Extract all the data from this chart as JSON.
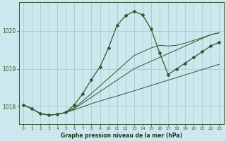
{
  "title": "Graphe pression niveau de la mer (hPa)",
  "bg_color": "#cce8ee",
  "grid_color": "#aacccc",
  "line_color": "#2d5a2d",
  "xlabel_color": "#1a3a1a",
  "ylim": [
    1017.55,
    1020.75
  ],
  "xlim": [
    -0.5,
    23.5
  ],
  "yticks": [
    1018,
    1019,
    1020
  ],
  "xticks": [
    0,
    1,
    2,
    3,
    4,
    5,
    6,
    7,
    8,
    9,
    10,
    11,
    12,
    13,
    14,
    15,
    16,
    17,
    18,
    19,
    20,
    21,
    22,
    23
  ],
  "line1_x": [
    0,
    1,
    2,
    3,
    4,
    5,
    6,
    7,
    8,
    9,
    10,
    11,
    12,
    13,
    14,
    15,
    16,
    17,
    18,
    19,
    20,
    21,
    22,
    23
  ],
  "line1_y": [
    1018.05,
    1017.95,
    1017.82,
    1017.78,
    1017.8,
    1017.85,
    1017.92,
    1018.0,
    1018.08,
    1018.15,
    1018.22,
    1018.28,
    1018.35,
    1018.42,
    1018.49,
    1018.56,
    1018.63,
    1018.7,
    1018.77,
    1018.84,
    1018.91,
    1018.98,
    1019.05,
    1019.12
  ],
  "line2_x": [
    0,
    1,
    2,
    3,
    4,
    5,
    6,
    7,
    8,
    9,
    10,
    11,
    12,
    13,
    14,
    15,
    16,
    17,
    18,
    19,
    20,
    21,
    22,
    23
  ],
  "line2_y": [
    1018.05,
    1017.95,
    1017.82,
    1017.78,
    1017.8,
    1017.85,
    1017.95,
    1018.1,
    1018.25,
    1018.4,
    1018.55,
    1018.7,
    1018.85,
    1019.0,
    1019.1,
    1019.2,
    1019.3,
    1019.4,
    1019.5,
    1019.6,
    1019.7,
    1019.8,
    1019.9,
    1019.95
  ],
  "line3_x": [
    0,
    1,
    2,
    3,
    4,
    5,
    6,
    7,
    8,
    9,
    10,
    11,
    12,
    13,
    14,
    15,
    16,
    17,
    18,
    19,
    20,
    21,
    22,
    23
  ],
  "line3_y": [
    1018.05,
    1017.95,
    1017.82,
    1017.78,
    1017.8,
    1017.85,
    1017.98,
    1018.15,
    1018.35,
    1018.55,
    1018.75,
    1018.95,
    1019.15,
    1019.35,
    1019.45,
    1019.55,
    1019.62,
    1019.6,
    1019.62,
    1019.68,
    1019.75,
    1019.82,
    1019.9,
    1019.95
  ],
  "curve_x": [
    0,
    1,
    2,
    3,
    4,
    5,
    6,
    7,
    8,
    9,
    10,
    11,
    12,
    13,
    14,
    15,
    16,
    17,
    18,
    19,
    20,
    21,
    22,
    23
  ],
  "curve_y": [
    1018.05,
    1017.95,
    1017.82,
    1017.78,
    1017.8,
    1017.85,
    1018.05,
    1018.35,
    1018.72,
    1019.05,
    1019.55,
    1020.15,
    1020.4,
    1020.52,
    1020.42,
    1020.05,
    1019.42,
    1018.85,
    1019.0,
    1019.15,
    1019.3,
    1019.45,
    1019.6,
    1019.7
  ],
  "marker_x": [
    0,
    1,
    2,
    3,
    4,
    5,
    6,
    7,
    8,
    9,
    10,
    11,
    12,
    13,
    14,
    15,
    16,
    17,
    18,
    19,
    20,
    21,
    22,
    23
  ],
  "marker_y": [
    1018.05,
    1017.95,
    1017.82,
    1017.78,
    1017.8,
    1017.85,
    1018.05,
    1018.35,
    1018.72,
    1019.05,
    1019.55,
    1020.15,
    1020.4,
    1020.52,
    1020.42,
    1020.05,
    1019.42,
    1018.85,
    1019.0,
    1019.15,
    1019.3,
    1019.45,
    1019.6,
    1019.7
  ]
}
